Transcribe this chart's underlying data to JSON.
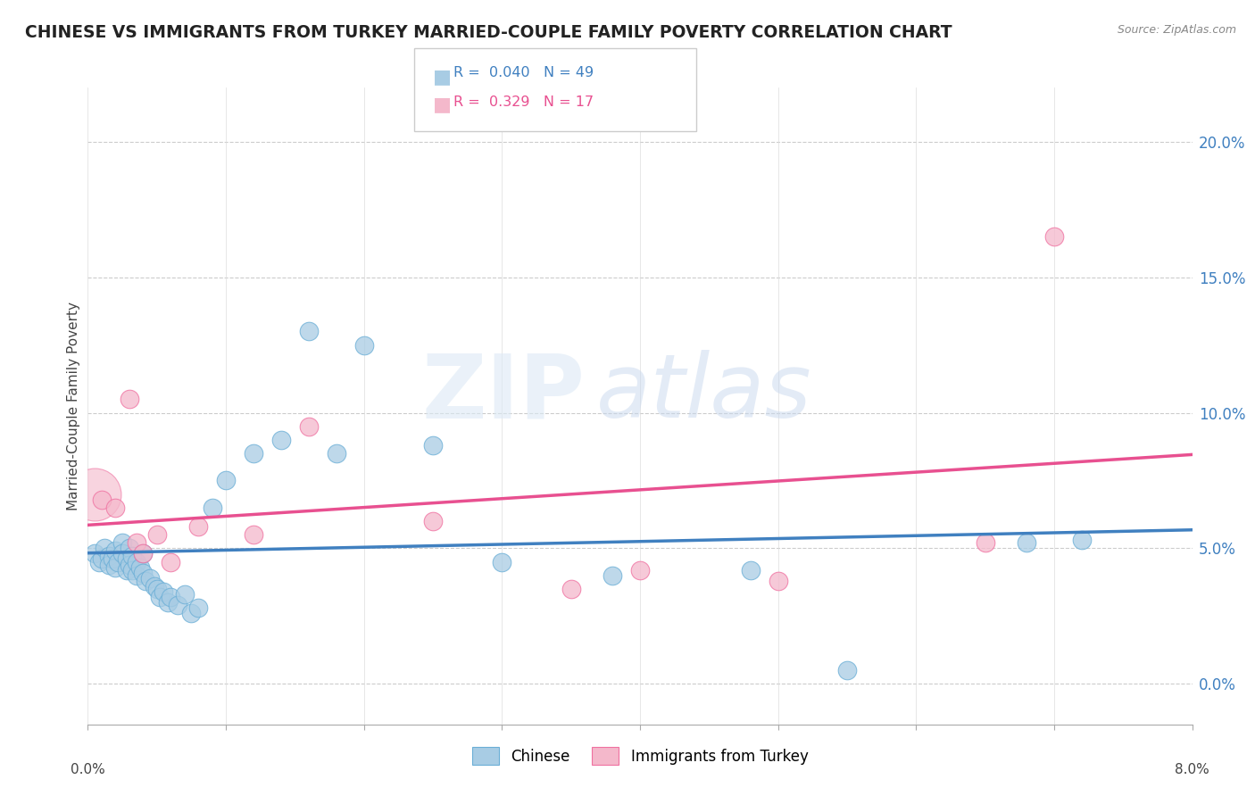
{
  "title": "CHINESE VS IMMIGRANTS FROM TURKEY MARRIED-COUPLE FAMILY POVERTY CORRELATION CHART",
  "source": "Source: ZipAtlas.com",
  "ylabel": "Married-Couple Family Poverty",
  "ytick_values": [
    0.0,
    5.0,
    10.0,
    15.0,
    20.0
  ],
  "xlim": [
    0.0,
    8.0
  ],
  "ylim": [
    -1.5,
    22.0
  ],
  "legend_chinese": "Chinese",
  "legend_turkey": "Immigrants from Turkey",
  "R_chinese": 0.04,
  "N_chinese": 49,
  "R_turkey": 0.329,
  "N_turkey": 17,
  "chinese_color": "#a8cce4",
  "turkey_color": "#f4b8cb",
  "chinese_edge_color": "#6aaed6",
  "turkey_edge_color": "#f070a0",
  "chinese_line_color": "#4080c0",
  "turkey_line_color": "#e85090",
  "watermark_zip": "ZIP",
  "watermark_atlas": "atlas",
  "chinese_x": [
    0.05,
    0.08,
    0.1,
    0.12,
    0.15,
    0.15,
    0.18,
    0.2,
    0.2,
    0.22,
    0.25,
    0.25,
    0.28,
    0.28,
    0.3,
    0.3,
    0.32,
    0.32,
    0.35,
    0.35,
    0.38,
    0.4,
    0.4,
    0.42,
    0.45,
    0.48,
    0.5,
    0.52,
    0.55,
    0.58,
    0.6,
    0.65,
    0.7,
    0.75,
    0.8,
    0.9,
    1.0,
    1.2,
    1.4,
    1.6,
    1.8,
    2.0,
    2.5,
    3.0,
    3.8,
    4.8,
    5.5,
    6.8,
    7.2
  ],
  "chinese_y": [
    4.8,
    4.5,
    4.6,
    5.0,
    4.7,
    4.4,
    4.6,
    4.9,
    4.3,
    4.5,
    5.2,
    4.8,
    4.6,
    4.2,
    5.0,
    4.4,
    4.7,
    4.2,
    4.5,
    4.0,
    4.3,
    4.1,
    4.8,
    3.8,
    3.9,
    3.6,
    3.5,
    3.2,
    3.4,
    3.0,
    3.2,
    2.9,
    3.3,
    2.6,
    2.8,
    6.5,
    7.5,
    8.5,
    9.0,
    13.0,
    8.5,
    12.5,
    8.8,
    4.5,
    4.0,
    4.2,
    0.5,
    5.2,
    5.3
  ],
  "turkey_x": [
    0.05,
    0.1,
    0.2,
    0.3,
    0.35,
    0.4,
    0.5,
    0.6,
    0.8,
    1.2,
    1.6,
    2.5,
    3.5,
    4.0,
    5.0,
    6.5,
    7.0
  ],
  "turkey_y": [
    7.0,
    6.8,
    6.5,
    10.5,
    5.2,
    4.8,
    5.5,
    4.5,
    5.8,
    5.5,
    9.5,
    6.0,
    3.5,
    4.2,
    3.8,
    5.2,
    16.5
  ],
  "turkey_large_x": [
    0.05
  ],
  "turkey_large_y": [
    7.0
  ]
}
